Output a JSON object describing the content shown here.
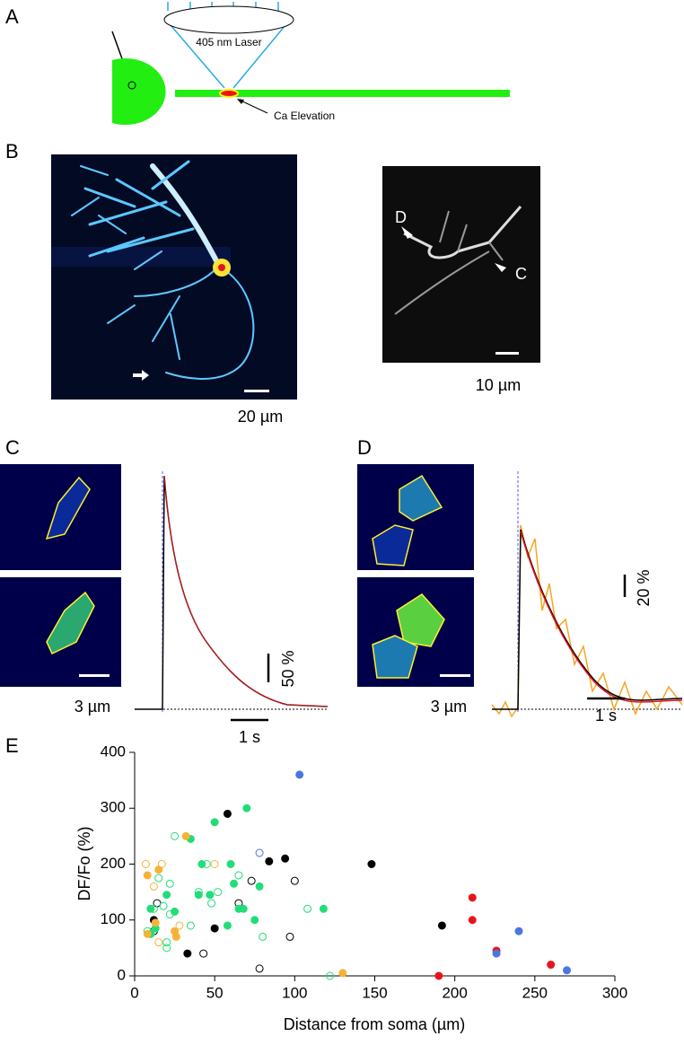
{
  "panels": {
    "a": "A",
    "b": "B",
    "c": "C",
    "d": "D",
    "e": "E"
  },
  "schematic": {
    "laser": "405 nm Laser",
    "ca": "Ca Elevation"
  },
  "images": {
    "b_scale": "20 µm",
    "b2_scale": "10 µm",
    "b2_d": "D",
    "b2_c": "C",
    "c_scale": "3 µm",
    "d_scale": "3 µm"
  },
  "traces": {
    "c_amp": "50 %",
    "c_time": "1 s",
    "d_amp": "20 %",
    "d_time": "1 s"
  },
  "chart_data": {
    "type": "scatter",
    "xlabel": "Distance from soma (µm)",
    "ylabel": "DF/Fo (%)",
    "xlim": [
      0,
      300
    ],
    "ylim": [
      0,
      400
    ],
    "xticks": [
      0,
      50,
      100,
      150,
      200,
      250,
      300
    ],
    "yticks": [
      0,
      100,
      200,
      300,
      400
    ],
    "series": [
      {
        "color": "#000000",
        "filled": true,
        "x": [
          12,
          33,
          50,
          58,
          84,
          94,
          148,
          192
        ],
        "values": [
          100,
          40,
          85,
          290,
          205,
          210,
          200,
          90
        ]
      },
      {
        "color": "#000000",
        "filled": false,
        "x": [
          14,
          43,
          65,
          73,
          78,
          97,
          100,
          12
        ],
        "values": [
          130,
          40,
          130,
          170,
          13,
          70,
          170,
          80
        ]
      },
      {
        "color": "#22dd77",
        "filled": true,
        "x": [
          10,
          13,
          20,
          25,
          35,
          40,
          42,
          47,
          50,
          58,
          60,
          62,
          65,
          68,
          70,
          75,
          78,
          118,
          10
        ],
        "values": [
          75,
          85,
          145,
          115,
          245,
          145,
          200,
          145,
          275,
          90,
          200,
          165,
          120,
          120,
          300,
          100,
          160,
          120,
          120
        ]
      },
      {
        "color": "#22dd77",
        "filled": false,
        "x": [
          8,
          12,
          15,
          18,
          20,
          22,
          22,
          25,
          40,
          45,
          48,
          52,
          65,
          80,
          108,
          122,
          20,
          35
        ],
        "values": [
          80,
          120,
          175,
          125,
          50,
          110,
          165,
          250,
          150,
          200,
          130,
          150,
          180,
          70,
          120,
          0,
          60,
          90
        ]
      },
      {
        "color": "#f5b335",
        "filled": true,
        "x": [
          8,
          15,
          8,
          13,
          25,
          26,
          32,
          130
        ],
        "values": [
          180,
          190,
          75,
          95,
          80,
          70,
          250,
          5
        ]
      },
      {
        "color": "#f5b335",
        "filled": false,
        "x": [
          7,
          12,
          17,
          15,
          28,
          50
        ],
        "values": [
          200,
          160,
          200,
          60,
          90,
          200
        ]
      },
      {
        "color": "#e8141c",
        "filled": true,
        "x": [
          190,
          211,
          211,
          226,
          260
        ],
        "values": [
          0,
          140,
          100,
          45,
          20
        ]
      },
      {
        "color": "#4a76e0",
        "filled": true,
        "x": [
          103,
          226,
          240,
          270
        ],
        "values": [
          360,
          40,
          80,
          10
        ]
      },
      {
        "color": "#4a76e0",
        "filled": false,
        "x": [
          78
        ],
        "values": [
          220
        ]
      }
    ]
  }
}
